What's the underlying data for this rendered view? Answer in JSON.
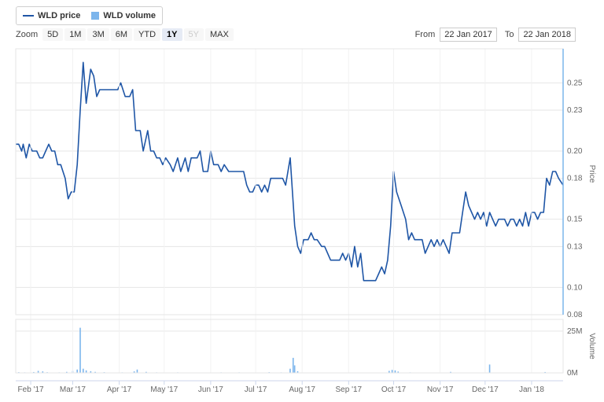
{
  "legend": {
    "items": [
      {
        "label": "WLD price",
        "color": "#1f56a6",
        "kind": "line"
      },
      {
        "label": "WLD volume",
        "color": "#7cb5ec",
        "kind": "column"
      }
    ]
  },
  "toolbar": {
    "zoom_label": "Zoom",
    "buttons": [
      {
        "label": "5D",
        "state": "normal"
      },
      {
        "label": "1M",
        "state": "normal"
      },
      {
        "label": "3M",
        "state": "normal"
      },
      {
        "label": "6M",
        "state": "normal"
      },
      {
        "label": "YTD",
        "state": "normal"
      },
      {
        "label": "1Y",
        "state": "active"
      },
      {
        "label": "5Y",
        "state": "disabled"
      },
      {
        "label": "MAX",
        "state": "normal"
      }
    ]
  },
  "range": {
    "from_label": "From",
    "from_value": "22 Jan 2017",
    "to_label": "To",
    "to_value": "22 Jan 2018"
  },
  "chart_data": {
    "type": "line",
    "grid": true,
    "price_axis": {
      "title": "Price",
      "ylim": [
        0.08,
        0.275
      ],
      "ticks": [
        0.08,
        0.1,
        0.13,
        0.15,
        0.18,
        0.2,
        0.23,
        0.25
      ],
      "tick_labels": [
        "0.08",
        "0.10",
        "0.13",
        "0.15",
        "0.18",
        "0.20",
        "0.23",
        "0.25"
      ]
    },
    "volume_axis": {
      "title": "Volume",
      "ylim": [
        0,
        32000000
      ],
      "ticks": [
        0,
        25000000
      ],
      "tick_labels": [
        "0M",
        "25M"
      ]
    },
    "x_axis": {
      "range": [
        "2017-01-22",
        "2018-01-22"
      ],
      "ticks": [
        {
          "date": "2017-02-01",
          "label": "Feb '17"
        },
        {
          "date": "2017-03-01",
          "label": "Mar '17"
        },
        {
          "date": "2017-04-01",
          "label": "Apr '17"
        },
        {
          "date": "2017-05-01",
          "label": "May '17"
        },
        {
          "date": "2017-06-01",
          "label": "Jun '17"
        },
        {
          "date": "2017-07-01",
          "label": "Jul '17"
        },
        {
          "date": "2017-08-01",
          "label": "Aug '17"
        },
        {
          "date": "2017-09-01",
          "label": "Sep '17"
        },
        {
          "date": "2017-10-01",
          "label": "Oct '17"
        },
        {
          "date": "2017-11-01",
          "label": "Nov '17"
        },
        {
          "date": "2017-12-01",
          "label": "Dec '17"
        },
        {
          "date": "2018-01-01",
          "label": "Jan '18"
        }
      ]
    },
    "series": [
      {
        "name": "WLD price",
        "color": "#1f56a6",
        "points": [
          [
            "2017-01-22",
            0.205
          ],
          [
            "2017-01-24",
            0.205
          ],
          [
            "2017-01-26",
            0.2
          ],
          [
            "2017-01-27",
            0.205
          ],
          [
            "2017-01-29",
            0.195
          ],
          [
            "2017-01-31",
            0.205
          ],
          [
            "2017-02-02",
            0.2
          ],
          [
            "2017-02-05",
            0.2
          ],
          [
            "2017-02-07",
            0.195
          ],
          [
            "2017-02-09",
            0.195
          ],
          [
            "2017-02-11",
            0.2
          ],
          [
            "2017-02-13",
            0.205
          ],
          [
            "2017-02-15",
            0.2
          ],
          [
            "2017-02-17",
            0.2
          ],
          [
            "2017-02-19",
            0.19
          ],
          [
            "2017-02-21",
            0.19
          ],
          [
            "2017-02-24",
            0.18
          ],
          [
            "2017-02-26",
            0.165
          ],
          [
            "2017-02-28",
            0.17
          ],
          [
            "2017-03-02",
            0.17
          ],
          [
            "2017-03-04",
            0.19
          ],
          [
            "2017-03-06",
            0.23
          ],
          [
            "2017-03-08",
            0.265
          ],
          [
            "2017-03-10",
            0.235
          ],
          [
            "2017-03-13",
            0.26
          ],
          [
            "2017-03-15",
            0.255
          ],
          [
            "2017-03-17",
            0.24
          ],
          [
            "2017-03-19",
            0.245
          ],
          [
            "2017-03-23",
            0.245
          ],
          [
            "2017-03-27",
            0.245
          ],
          [
            "2017-03-31",
            0.245
          ],
          [
            "2017-04-02",
            0.25
          ],
          [
            "2017-04-05",
            0.24
          ],
          [
            "2017-04-08",
            0.24
          ],
          [
            "2017-04-10",
            0.245
          ],
          [
            "2017-04-12",
            0.215
          ],
          [
            "2017-04-15",
            0.215
          ],
          [
            "2017-04-17",
            0.2
          ],
          [
            "2017-04-20",
            0.215
          ],
          [
            "2017-04-22",
            0.2
          ],
          [
            "2017-04-24",
            0.2
          ],
          [
            "2017-04-26",
            0.195
          ],
          [
            "2017-04-28",
            0.195
          ],
          [
            "2017-04-30",
            0.19
          ],
          [
            "2017-05-02",
            0.195
          ],
          [
            "2017-05-05",
            0.19
          ],
          [
            "2017-05-07",
            0.185
          ],
          [
            "2017-05-10",
            0.195
          ],
          [
            "2017-05-12",
            0.185
          ],
          [
            "2017-05-15",
            0.195
          ],
          [
            "2017-05-17",
            0.185
          ],
          [
            "2017-05-19",
            0.195
          ],
          [
            "2017-05-23",
            0.195
          ],
          [
            "2017-05-25",
            0.2
          ],
          [
            "2017-05-27",
            0.185
          ],
          [
            "2017-05-30",
            0.185
          ],
          [
            "2017-06-01",
            0.2
          ],
          [
            "2017-06-03",
            0.19
          ],
          [
            "2017-06-06",
            0.19
          ],
          [
            "2017-06-08",
            0.185
          ],
          [
            "2017-06-10",
            0.19
          ],
          [
            "2017-06-13",
            0.185
          ],
          [
            "2017-06-20",
            0.185
          ],
          [
            "2017-06-23",
            0.185
          ],
          [
            "2017-06-25",
            0.175
          ],
          [
            "2017-06-27",
            0.17
          ],
          [
            "2017-06-29",
            0.17
          ],
          [
            "2017-07-01",
            0.175
          ],
          [
            "2017-07-03",
            0.175
          ],
          [
            "2017-07-05",
            0.17
          ],
          [
            "2017-07-07",
            0.175
          ],
          [
            "2017-07-09",
            0.17
          ],
          [
            "2017-07-11",
            0.18
          ],
          [
            "2017-07-15",
            0.18
          ],
          [
            "2017-07-19",
            0.18
          ],
          [
            "2017-07-21",
            0.175
          ],
          [
            "2017-07-24",
            0.195
          ],
          [
            "2017-07-27",
            0.145
          ],
          [
            "2017-07-29",
            0.13
          ],
          [
            "2017-07-31",
            0.125
          ],
          [
            "2017-08-02",
            0.135
          ],
          [
            "2017-08-05",
            0.135
          ],
          [
            "2017-08-07",
            0.14
          ],
          [
            "2017-08-09",
            0.135
          ],
          [
            "2017-08-11",
            0.135
          ],
          [
            "2017-08-14",
            0.13
          ],
          [
            "2017-08-16",
            0.13
          ],
          [
            "2017-08-18",
            0.125
          ],
          [
            "2017-08-20",
            0.12
          ],
          [
            "2017-08-22",
            0.12
          ],
          [
            "2017-08-26",
            0.12
          ],
          [
            "2017-08-28",
            0.125
          ],
          [
            "2017-08-30",
            0.12
          ],
          [
            "2017-09-01",
            0.125
          ],
          [
            "2017-09-03",
            0.115
          ],
          [
            "2017-09-05",
            0.13
          ],
          [
            "2017-09-07",
            0.115
          ],
          [
            "2017-09-09",
            0.125
          ],
          [
            "2017-09-11",
            0.105
          ],
          [
            "2017-09-15",
            0.105
          ],
          [
            "2017-09-19",
            0.105
          ],
          [
            "2017-09-21",
            0.11
          ],
          [
            "2017-09-23",
            0.115
          ],
          [
            "2017-09-25",
            0.11
          ],
          [
            "2017-09-27",
            0.12
          ],
          [
            "2017-09-29",
            0.145
          ],
          [
            "2017-10-01",
            0.185
          ],
          [
            "2017-10-03",
            0.17
          ],
          [
            "2017-10-06",
            0.16
          ],
          [
            "2017-10-09",
            0.15
          ],
          [
            "2017-10-11",
            0.135
          ],
          [
            "2017-10-13",
            0.14
          ],
          [
            "2017-10-15",
            0.135
          ],
          [
            "2017-10-20",
            0.135
          ],
          [
            "2017-10-22",
            0.125
          ],
          [
            "2017-10-24",
            0.13
          ],
          [
            "2017-10-26",
            0.135
          ],
          [
            "2017-10-28",
            0.13
          ],
          [
            "2017-10-30",
            0.135
          ],
          [
            "2017-11-01",
            0.13
          ],
          [
            "2017-11-03",
            0.135
          ],
          [
            "2017-11-05",
            0.13
          ],
          [
            "2017-11-07",
            0.125
          ],
          [
            "2017-11-09",
            0.14
          ],
          [
            "2017-11-12",
            0.14
          ],
          [
            "2017-11-14",
            0.14
          ],
          [
            "2017-11-16",
            0.155
          ],
          [
            "2017-11-18",
            0.17
          ],
          [
            "2017-11-20",
            0.16
          ],
          [
            "2017-11-22",
            0.155
          ],
          [
            "2017-11-24",
            0.15
          ],
          [
            "2017-11-26",
            0.155
          ],
          [
            "2017-11-28",
            0.15
          ],
          [
            "2017-11-30",
            0.155
          ],
          [
            "2017-12-02",
            0.145
          ],
          [
            "2017-12-04",
            0.155
          ],
          [
            "2017-12-06",
            0.15
          ],
          [
            "2017-12-08",
            0.145
          ],
          [
            "2017-12-10",
            0.15
          ],
          [
            "2017-12-14",
            0.15
          ],
          [
            "2017-12-16",
            0.145
          ],
          [
            "2017-12-18",
            0.15
          ],
          [
            "2017-12-20",
            0.15
          ],
          [
            "2017-12-22",
            0.145
          ],
          [
            "2017-12-24",
            0.15
          ],
          [
            "2017-12-26",
            0.145
          ],
          [
            "2017-12-28",
            0.155
          ],
          [
            "2017-12-30",
            0.145
          ],
          [
            "2018-01-01",
            0.155
          ],
          [
            "2018-01-03",
            0.155
          ],
          [
            "2018-01-05",
            0.15
          ],
          [
            "2018-01-07",
            0.155
          ],
          [
            "2018-01-09",
            0.155
          ],
          [
            "2018-01-11",
            0.18
          ],
          [
            "2018-01-13",
            0.175
          ],
          [
            "2018-01-15",
            0.185
          ],
          [
            "2018-01-17",
            0.185
          ],
          [
            "2018-01-19",
            0.18
          ],
          [
            "2018-01-22",
            0.175
          ]
        ]
      },
      {
        "name": "WLD volume",
        "color": "#7cb5ec",
        "points": [
          [
            "2017-01-24",
            400000
          ],
          [
            "2017-01-28",
            300000
          ],
          [
            "2017-02-03",
            500000
          ],
          [
            "2017-02-06",
            1200000
          ],
          [
            "2017-02-09",
            900000
          ],
          [
            "2017-02-12",
            400000
          ],
          [
            "2017-02-20",
            300000
          ],
          [
            "2017-02-25",
            600000
          ],
          [
            "2017-03-01",
            1200000
          ],
          [
            "2017-03-04",
            2000000
          ],
          [
            "2017-03-06",
            27000000
          ],
          [
            "2017-03-08",
            2500000
          ],
          [
            "2017-03-10",
            1500000
          ],
          [
            "2017-03-13",
            1000000
          ],
          [
            "2017-03-16",
            600000
          ],
          [
            "2017-03-22",
            400000
          ],
          [
            "2017-04-03",
            300000
          ],
          [
            "2017-04-11",
            900000
          ],
          [
            "2017-04-13",
            2000000
          ],
          [
            "2017-04-19",
            600000
          ],
          [
            "2017-04-26",
            300000
          ],
          [
            "2017-05-10",
            300000
          ],
          [
            "2017-06-08",
            300000
          ],
          [
            "2017-06-20",
            300000
          ],
          [
            "2017-07-10",
            400000
          ],
          [
            "2017-07-18",
            300000
          ],
          [
            "2017-07-24",
            2500000
          ],
          [
            "2017-07-26",
            9000000
          ],
          [
            "2017-07-27",
            4500000
          ],
          [
            "2017-07-29",
            1000000
          ],
          [
            "2017-09-28",
            1200000
          ],
          [
            "2017-09-30",
            1800000
          ],
          [
            "2017-10-02",
            1500000
          ],
          [
            "2017-10-04",
            800000
          ],
          [
            "2017-10-12",
            300000
          ],
          [
            "2017-11-08",
            600000
          ],
          [
            "2017-12-04",
            5000000
          ],
          [
            "2018-01-10",
            500000
          ]
        ]
      }
    ]
  }
}
